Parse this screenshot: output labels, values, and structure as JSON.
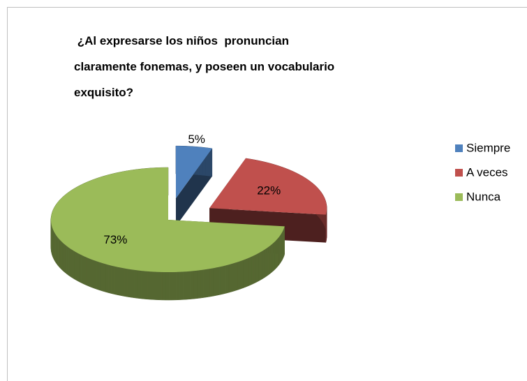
{
  "chart_data": {
    "type": "pie",
    "title": " ¿Al expresarse los niños  pronuncian\nclaramente fonemas, y poseen un vocabulario\nexquisito?",
    "categories": [
      "Siempre",
      "A veces",
      "Nunca"
    ],
    "values": [
      5,
      22,
      73
    ],
    "value_labels": [
      "5%",
      "22%",
      "73%"
    ],
    "colors": [
      "#4f81bd",
      "#c0504d",
      "#9bbb59"
    ],
    "legend": "right"
  }
}
